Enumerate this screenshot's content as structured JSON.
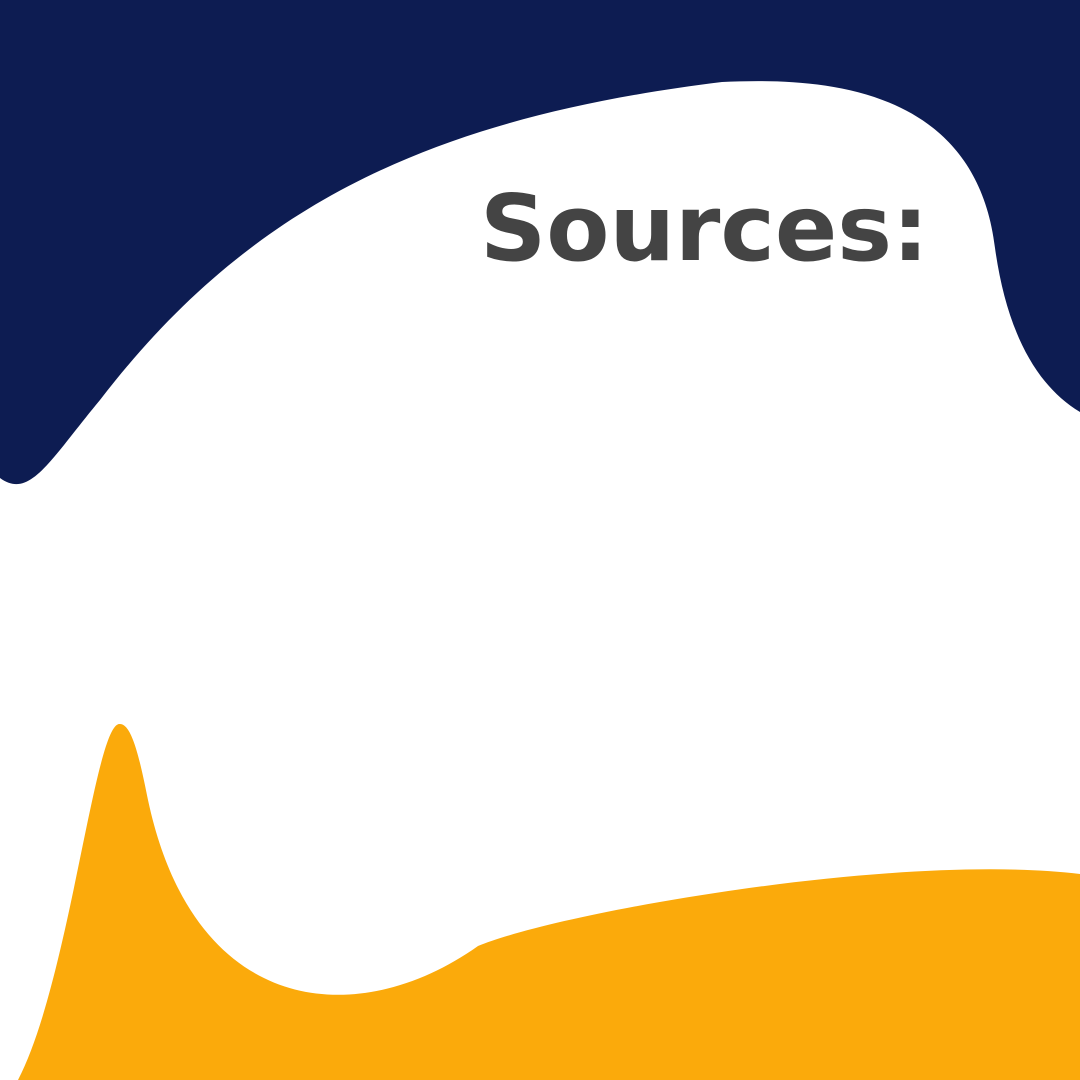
{
  "title": "Sources:"
}
